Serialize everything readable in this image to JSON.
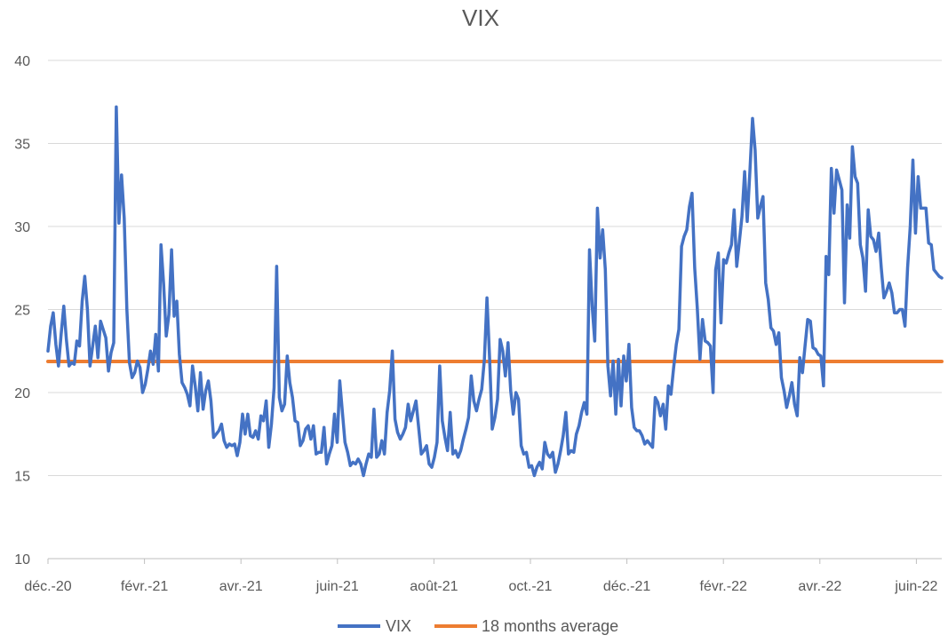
{
  "chart_data": {
    "type": "line",
    "title": "VIX",
    "xlabel": "",
    "ylabel": "",
    "ylim": [
      10,
      40
    ],
    "yticks": [
      "10",
      "15",
      "20",
      "25",
      "30",
      "35",
      "40"
    ],
    "xticks": [
      "déc.-20",
      "févr.-21",
      "avr.-21",
      "juin-21",
      "août-21",
      "oct.-21",
      "déc.-21",
      "févr.-22",
      "avr.-22",
      "juin-22"
    ],
    "grid": true,
    "legend": "bottom",
    "series": [
      {
        "name": "VIX",
        "color": "#4472C4",
        "values": [
          22.5,
          24.0,
          24.8,
          22.9,
          21.6,
          23.5,
          25.2,
          23.2,
          21.6,
          21.8,
          21.7,
          23.1,
          22.8,
          25.5,
          27.0,
          25.0,
          21.6,
          22.8,
          24.0,
          22.1,
          24.3,
          23.8,
          23.3,
          21.3,
          22.4,
          23.0,
          37.2,
          30.2,
          33.1,
          30.5,
          25.0,
          21.8,
          20.9,
          21.2,
          21.9,
          21.5,
          20.0,
          20.5,
          21.4,
          22.5,
          21.7,
          23.5,
          21.3,
          28.9,
          26.5,
          23.4,
          24.7,
          28.6,
          24.6,
          25.5,
          22.3,
          20.6,
          20.3,
          19.9,
          19.2,
          21.6,
          20.4,
          18.9,
          21.2,
          19.0,
          20.1,
          20.7,
          19.5,
          17.3,
          17.5,
          17.7,
          18.1,
          17.1,
          16.7,
          16.9,
          16.8,
          16.9,
          16.2,
          17.0,
          18.7,
          17.5,
          18.7,
          17.4,
          17.3,
          17.7,
          17.2,
          18.6,
          18.3,
          19.5,
          16.7,
          18.1,
          20.3,
          27.6,
          19.7,
          18.9,
          19.3,
          22.2,
          20.6,
          19.7,
          18.3,
          18.2,
          16.8,
          17.1,
          17.8,
          18.0,
          17.2,
          18.0,
          16.3,
          16.4,
          16.4,
          17.9,
          15.7,
          16.3,
          16.8,
          18.7,
          17.0,
          20.7,
          18.8,
          17.0,
          16.4,
          15.6,
          15.8,
          15.7,
          16.0,
          15.7,
          15.0,
          15.7,
          16.3,
          16.1,
          19.0,
          16.1,
          16.3,
          17.1,
          16.3,
          18.8,
          20.1,
          22.5,
          18.4,
          17.6,
          17.2,
          17.5,
          17.9,
          19.3,
          18.3,
          18.9,
          19.5,
          17.9,
          16.3,
          16.5,
          16.8,
          15.7,
          15.5,
          16.1,
          17.0,
          21.6,
          18.3,
          17.3,
          16.5,
          18.8,
          16.3,
          16.5,
          16.1,
          16.5,
          17.2,
          17.8,
          18.5,
          21.0,
          19.5,
          18.9,
          19.6,
          20.2,
          22.0,
          25.7,
          22.0,
          17.8,
          18.5,
          19.6,
          23.2,
          22.5,
          21.0,
          23.0,
          20.1,
          18.7,
          20.0,
          19.6,
          16.8,
          16.3,
          16.4,
          15.5,
          15.6,
          15.0,
          15.5,
          15.8,
          15.4,
          17.0,
          16.3,
          16.1,
          16.4,
          15.2,
          15.7,
          16.5,
          17.4,
          18.8,
          16.3,
          16.5,
          16.4,
          17.5,
          18.0,
          18.8,
          19.4,
          18.7,
          28.6,
          25.2,
          23.1,
          31.1,
          28.1,
          29.8,
          27.4,
          21.6,
          19.8,
          21.9,
          18.7,
          22.0,
          19.2,
          22.2,
          20.7,
          22.9,
          19.1,
          17.9,
          17.7,
          17.7,
          17.4,
          16.9,
          17.1,
          16.9,
          16.7,
          19.7,
          19.4,
          18.6,
          19.3,
          17.8,
          20.4,
          19.9,
          21.5,
          22.9,
          23.8,
          28.8,
          29.4,
          29.8,
          31.2,
          32.0,
          27.5,
          25.1,
          22.0,
          24.4,
          23.1,
          23.0,
          22.8,
          20.0,
          27.4,
          28.4,
          24.2,
          28.0,
          27.8,
          28.4,
          28.9,
          31.0,
          27.6,
          29.1,
          30.6,
          33.3,
          30.3,
          33.3,
          36.5,
          34.6,
          30.5,
          31.2,
          31.8,
          26.6,
          25.6,
          23.9,
          23.7,
          22.9,
          23.6,
          20.9,
          20.1,
          19.1,
          19.8,
          20.6,
          19.3,
          18.6,
          22.1,
          21.2,
          22.8,
          24.4,
          24.3,
          22.7,
          22.6,
          22.3,
          22.2,
          20.4,
          28.2,
          27.1,
          33.5,
          30.8,
          33.4,
          32.8,
          32.2,
          25.4,
          31.3,
          29.3,
          34.8,
          33.0,
          32.6,
          28.9,
          28.1,
          26.1,
          31.0,
          29.4,
          29.2,
          28.5,
          29.6,
          27.5,
          25.7,
          26.1,
          26.6,
          26.0,
          24.8,
          24.8,
          25.0,
          25.0,
          24.0,
          27.5,
          30.0,
          34.0,
          29.6,
          33.0,
          31.1,
          31.1,
          31.1,
          29.0,
          28.9,
          27.4,
          27.2,
          27.0,
          26.9
        ]
      },
      {
        "name": "18 months average",
        "color": "#ED7D31",
        "values": [
          21.87,
          21.87
        ]
      }
    ]
  }
}
